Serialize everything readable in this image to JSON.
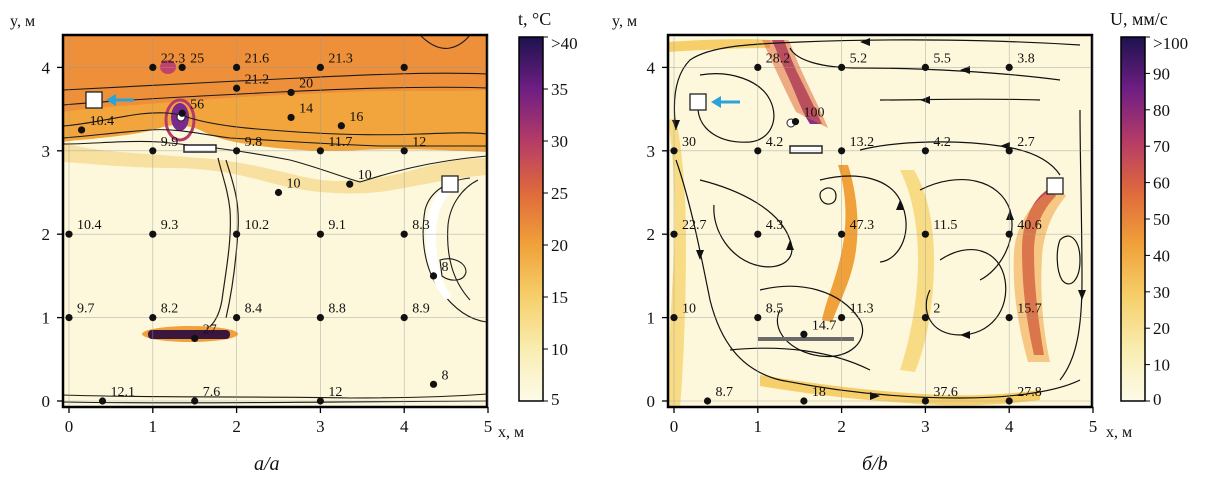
{
  "chart_data": [
    {
      "type": "heatmap",
      "caption": "a/a",
      "xlabel": "x, м",
      "ylabel": "y, м",
      "xlim": [
        0,
        5
      ],
      "ylim": [
        0,
        4.2
      ],
      "xticks": [
        "0",
        "1",
        "2",
        "3",
        "4",
        "5"
      ],
      "yticks": [
        "0",
        "1",
        "2",
        "3",
        "4"
      ],
      "colorbar": {
        "title": "t, °C",
        "range": [
          5,
          40
        ],
        "ticks": [
          "5",
          "10",
          "15",
          "20",
          "25",
          "30",
          "35",
          ">40"
        ],
        "colors": [
          "#fdfbea",
          "#f9edb0",
          "#f6cf6a",
          "#f0a13a",
          "#e06a3b",
          "#b53b66",
          "#6e1e83",
          "#1d124e"
        ]
      },
      "points": [
        {
          "x": 1.0,
          "y": 4.0,
          "label": "22.3"
        },
        {
          "x": 2.0,
          "y": 4.0,
          "label": "21.6"
        },
        {
          "x": 3.0,
          "y": 4.0,
          "label": "21.3"
        },
        {
          "x": 4.0,
          "y": 4.0,
          "label": ""
        },
        {
          "x": 1.35,
          "y": 4.0,
          "label": "25"
        },
        {
          "x": 1.35,
          "y": 3.45,
          "label": "56"
        },
        {
          "x": 0.15,
          "y": 3.25,
          "label": "10.4"
        },
        {
          "x": 2.0,
          "y": 3.75,
          "label": "21.2"
        },
        {
          "x": 2.65,
          "y": 3.7,
          "label": "20"
        },
        {
          "x": 2.65,
          "y": 3.4,
          "label": "14"
        },
        {
          "x": 3.25,
          "y": 3.3,
          "label": "16"
        },
        {
          "x": 1.0,
          "y": 3.0,
          "label": "9.9"
        },
        {
          "x": 2.0,
          "y": 3.0,
          "label": "9.8"
        },
        {
          "x": 3.0,
          "y": 3.0,
          "label": "11.7"
        },
        {
          "x": 4.0,
          "y": 3.0,
          "label": "12"
        },
        {
          "x": 2.5,
          "y": 2.5,
          "label": "10"
        },
        {
          "x": 3.35,
          "y": 2.6,
          "label": "10"
        },
        {
          "x": 0.0,
          "y": 2.0,
          "label": "10.4"
        },
        {
          "x": 1.0,
          "y": 2.0,
          "label": "9.3"
        },
        {
          "x": 2.0,
          "y": 2.0,
          "label": "10.2"
        },
        {
          "x": 3.0,
          "y": 2.0,
          "label": "9.1"
        },
        {
          "x": 4.0,
          "y": 2.0,
          "label": "8.3"
        },
        {
          "x": 4.35,
          "y": 1.5,
          "label": "8"
        },
        {
          "x": 0.0,
          "y": 1.0,
          "label": "9.7"
        },
        {
          "x": 1.0,
          "y": 1.0,
          "label": "8.2"
        },
        {
          "x": 2.0,
          "y": 1.0,
          "label": "8.4"
        },
        {
          "x": 3.0,
          "y": 1.0,
          "label": "8.8"
        },
        {
          "x": 4.0,
          "y": 1.0,
          "label": "8.9"
        },
        {
          "x": 1.5,
          "y": 0.75,
          "label": "27"
        },
        {
          "x": 4.35,
          "y": 0.2,
          "label": "8"
        },
        {
          "x": 0.4,
          "y": 0.0,
          "label": "12.1"
        },
        {
          "x": 1.5,
          "y": 0.0,
          "label": "7.6"
        },
        {
          "x": 3.0,
          "y": 0.0,
          "label": "12"
        }
      ]
    },
    {
      "type": "heatmap",
      "caption": "б/b",
      "xlabel": "x, м",
      "ylabel": "y, м",
      "xlim": [
        0,
        5
      ],
      "ylim": [
        0,
        4.2
      ],
      "xticks": [
        "0",
        "1",
        "2",
        "3",
        "4",
        "5"
      ],
      "yticks": [
        "0",
        "1",
        "2",
        "3",
        "4"
      ],
      "colorbar": {
        "title": "U, мм/с",
        "range": [
          0,
          100
        ],
        "ticks": [
          "0",
          "10",
          "20",
          "30",
          "40",
          "50",
          "60",
          "70",
          "80",
          "90",
          ">100"
        ],
        "colors": [
          "#fdfbea",
          "#f9edb0",
          "#f6cf6a",
          "#f0a13a",
          "#e06a3b",
          "#b53b66",
          "#6e1e83",
          "#1d124e"
        ]
      },
      "points": [
        {
          "x": 1.0,
          "y": 4.0,
          "label": "28.2"
        },
        {
          "x": 2.0,
          "y": 4.0,
          "label": "5.2"
        },
        {
          "x": 3.0,
          "y": 4.0,
          "label": "5.5"
        },
        {
          "x": 4.0,
          "y": 4.0,
          "label": "3.8"
        },
        {
          "x": 1.45,
          "y": 3.35,
          "label": "100"
        },
        {
          "x": 0.0,
          "y": 3.0,
          "label": "30"
        },
        {
          "x": 1.0,
          "y": 3.0,
          "label": "4.2"
        },
        {
          "x": 2.0,
          "y": 3.0,
          "label": "13.2"
        },
        {
          "x": 3.0,
          "y": 3.0,
          "label": "4.2"
        },
        {
          "x": 4.0,
          "y": 3.0,
          "label": "2.7"
        },
        {
          "x": 0.0,
          "y": 2.0,
          "label": "22.7"
        },
        {
          "x": 1.0,
          "y": 2.0,
          "label": "4.3"
        },
        {
          "x": 2.0,
          "y": 2.0,
          "label": "47.3"
        },
        {
          "x": 3.0,
          "y": 2.0,
          "label": "11.5"
        },
        {
          "x": 4.0,
          "y": 2.0,
          "label": "40.6"
        },
        {
          "x": 0.0,
          "y": 1.0,
          "label": "10"
        },
        {
          "x": 1.0,
          "y": 1.0,
          "label": "8.5"
        },
        {
          "x": 2.0,
          "y": 1.0,
          "label": "11.3"
        },
        {
          "x": 3.0,
          "y": 1.0,
          "label": "2"
        },
        {
          "x": 4.0,
          "y": 1.0,
          "label": "15.7"
        },
        {
          "x": 1.55,
          "y": 0.8,
          "label": "14.7"
        },
        {
          "x": 0.4,
          "y": 0.0,
          "label": "8.7"
        },
        {
          "x": 1.55,
          "y": 0.0,
          "label": "18"
        },
        {
          "x": 3.0,
          "y": 0.0,
          "label": "37.6"
        },
        {
          "x": 4.0,
          "y": 0.0,
          "label": "27.8"
        }
      ]
    }
  ]
}
